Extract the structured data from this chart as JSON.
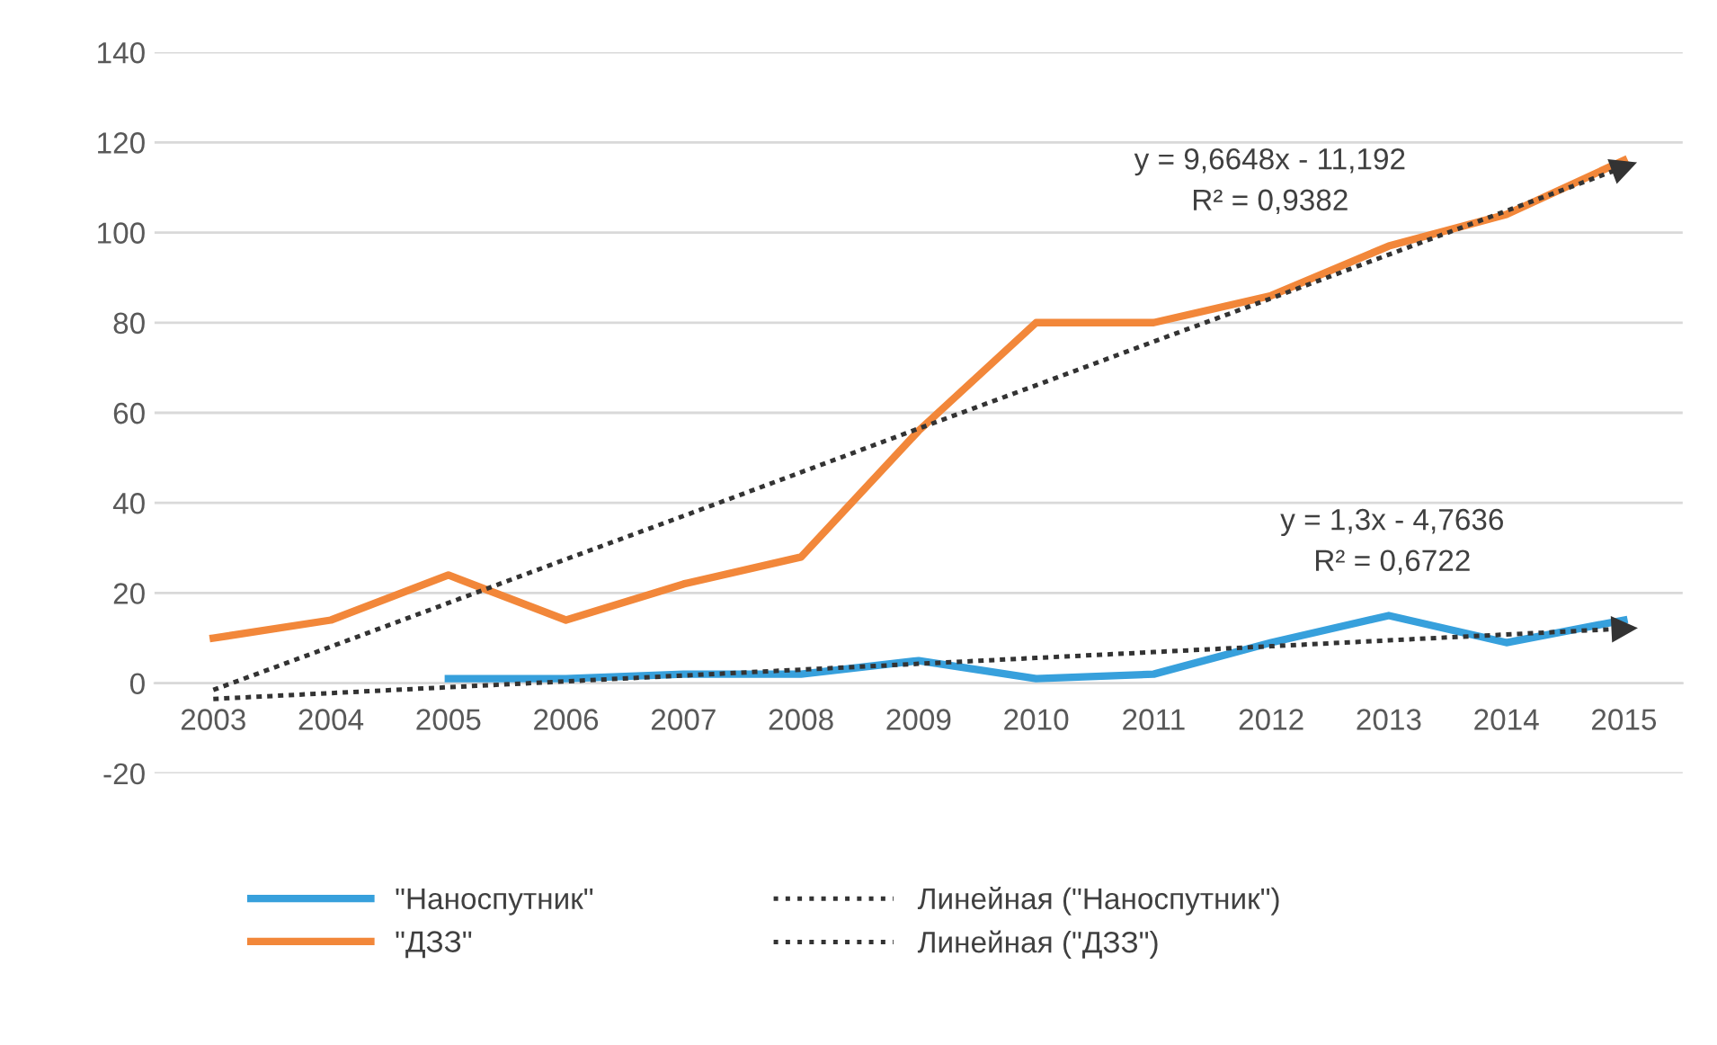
{
  "chart_data": {
    "type": "line",
    "categories": [
      "2003",
      "2004",
      "2005",
      "2006",
      "2007",
      "2008",
      "2009",
      "2010",
      "2011",
      "2012",
      "2013",
      "2014",
      "2015"
    ],
    "series": [
      {
        "name": "\"Наноспутник\"",
        "color": "#37a0dc",
        "values": [
          null,
          null,
          1,
          1,
          2,
          2,
          5,
          1,
          2,
          9,
          15,
          9,
          14
        ]
      },
      {
        "name": "\"ДЗЗ\"",
        "color": "#f2873a",
        "values": [
          10,
          14,
          24,
          14,
          22,
          28,
          56,
          80,
          80,
          86,
          97,
          104,
          116
        ]
      },
      {
        "name": "Линейная (\"Наноспутник\")",
        "color": "#333333",
        "type": "line",
        "line_style": "dotted",
        "values": [
          -3.5,
          -2.2,
          -0.9,
          0.4,
          1.7,
          3.0,
          4.3,
          5.6,
          6.9,
          8.2,
          9.5,
          10.8,
          12.1
        ]
      },
      {
        "name": "Линейная (\"ДЗЗ\")",
        "color": "#333333",
        "type": "line",
        "line_style": "dotted",
        "values": [
          -1.5,
          8.1,
          17.8,
          27.5,
          37.1,
          46.8,
          56.5,
          66.1,
          75.8,
          85.4,
          95.1,
          104.8,
          114.5
        ]
      }
    ],
    "ylim": [
      -20,
      140
    ],
    "yticks": [
      -20,
      0,
      20,
      40,
      60,
      80,
      100,
      120,
      140
    ],
    "grid": "y",
    "legend": "bottom",
    "annotations": [
      "y = 9,6648x - 11,192\nR² = 0,9382",
      "y = 1,3x - 4,7636\nR² = 0,6722"
    ]
  }
}
